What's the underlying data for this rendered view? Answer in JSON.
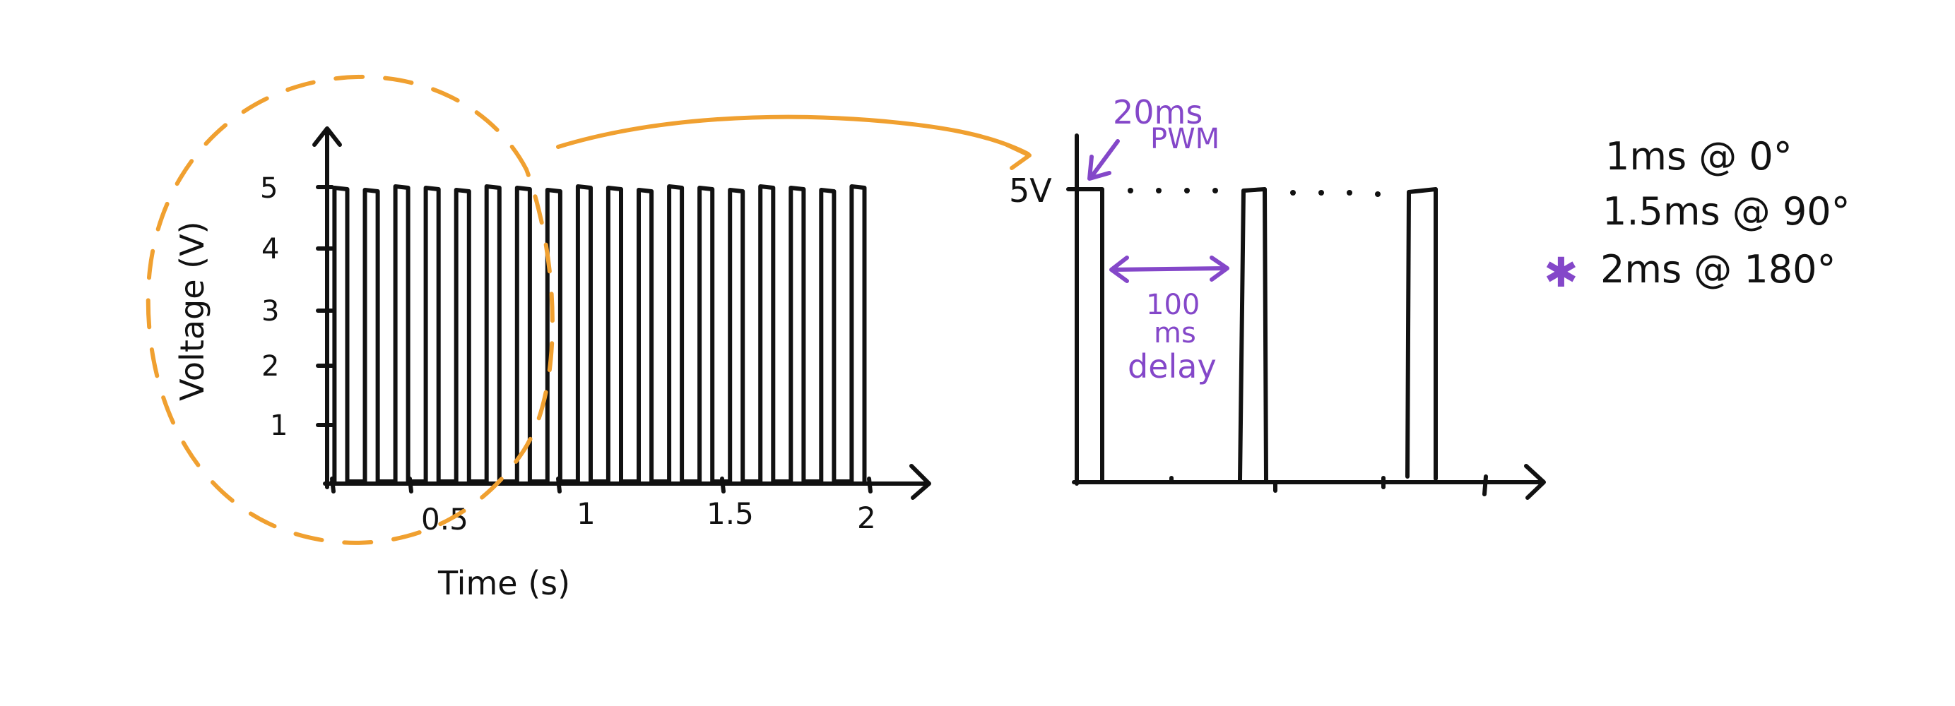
{
  "left_plot": {
    "y_axis_label": "Voltage (V)",
    "x_axis_label": "Time (s)",
    "y_ticks": [
      "1",
      "2",
      "3",
      "4",
      "5"
    ],
    "x_ticks": [
      "0.5",
      "1",
      "1.5",
      "2"
    ],
    "pulse_count": 18,
    "pulse_level_v": 5
  },
  "right_plot": {
    "level_label": "5V",
    "pwm_label_line1": "20ms",
    "pwm_label_line2": "PWM",
    "delay_label_line1": "100",
    "delay_label_line2": "ms",
    "delay_label_line3": "delay",
    "pulse_count": 3
  },
  "legend": {
    "items": [
      {
        "text": "1ms @ 0°",
        "marked": false
      },
      {
        "text": "1.5ms @ 90°",
        "marked": false
      },
      {
        "text": "2ms @ 180°",
        "marked": true
      }
    ],
    "marker": "✱"
  },
  "colors": {
    "ink": "#111111",
    "annotation": "#8447c9",
    "highlight": "#f0a030"
  }
}
